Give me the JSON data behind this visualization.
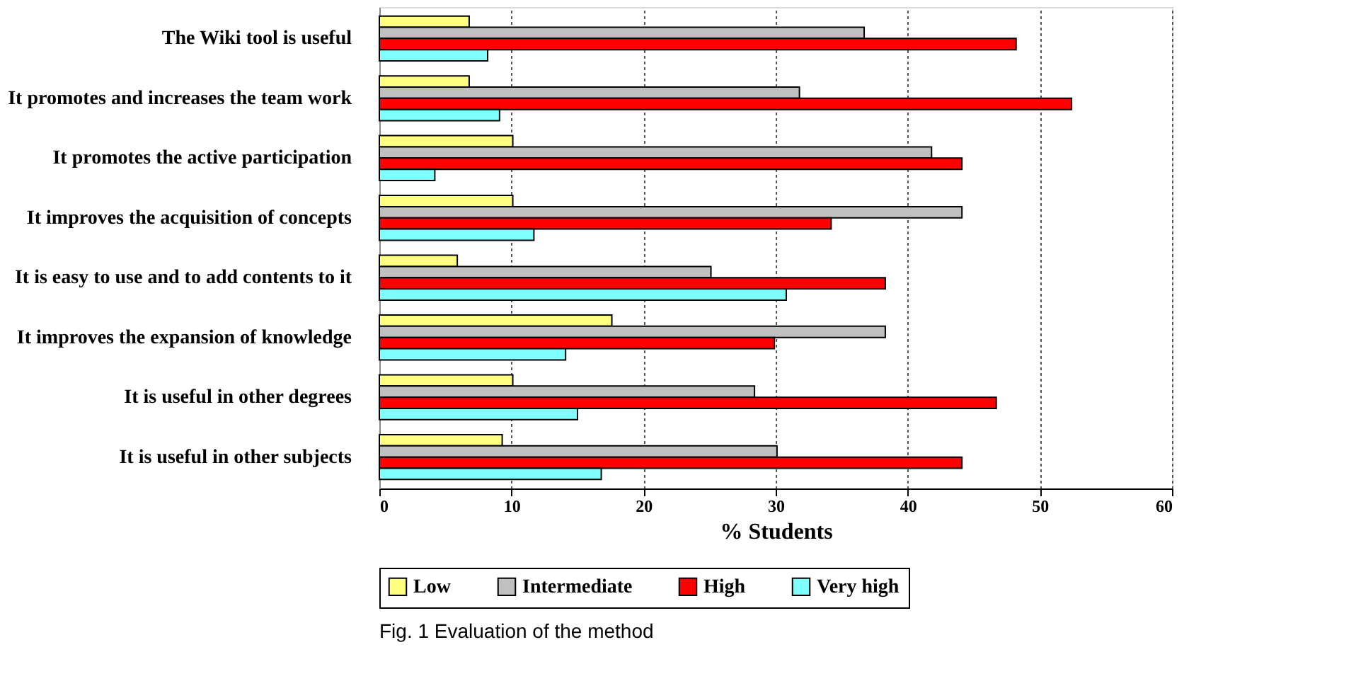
{
  "chart_data": {
    "type": "bar",
    "orientation": "horizontal",
    "categories": [
      "The Wiki tool is useful",
      "It promotes and increases the team work",
      "It promotes the active participation",
      "It improves the acquisition of concepts",
      "It is easy to use and to add contents to it",
      "It improves the expansion of knowledge",
      "It is useful in other degrees",
      "It is useful in other subjects"
    ],
    "series": [
      {
        "name": "Low",
        "color": "#ffff80",
        "values": [
          6.8,
          6.8,
          10.1,
          10.1,
          5.9,
          17.6,
          10.1,
          9.3
        ]
      },
      {
        "name": "Intermediate",
        "color": "#c0c0c0",
        "values": [
          36.7,
          31.8,
          41.8,
          44.1,
          25.1,
          38.3,
          28.4,
          30.1
        ]
      },
      {
        "name": "High",
        "color": "#ff0000",
        "values": [
          48.2,
          52.4,
          44.1,
          34.2,
          38.3,
          29.9,
          46.7,
          44.1
        ]
      },
      {
        "name": "Very high",
        "color": "#80ffff",
        "values": [
          8.2,
          9.1,
          4.2,
          11.7,
          30.8,
          14.1,
          15.0,
          16.8
        ]
      }
    ],
    "xlabel": "% Students",
    "xlim": [
      0,
      60
    ],
    "xticks": [
      0,
      10,
      20,
      30,
      40,
      50,
      60
    ],
    "grid": "x",
    "legend": "bottom",
    "annotations": [
      "Fig. 1 Evaluation of the method"
    ]
  }
}
